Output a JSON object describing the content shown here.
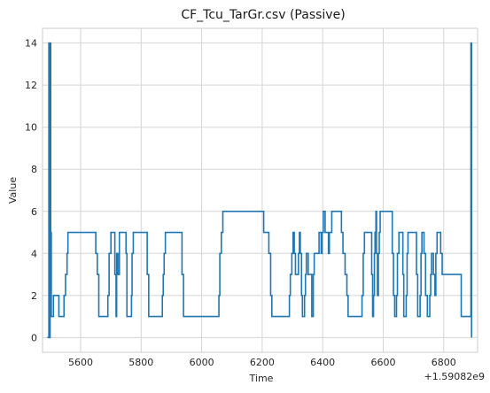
{
  "chart_data": {
    "type": "line",
    "title": "CF_Tcu_TarGr.csv (Passive)",
    "xlabel": "Time",
    "ylabel": "Value",
    "x_offset_label": "+1.59082e9",
    "xlim": [
      5474,
      6912
    ],
    "ylim": [
      -0.7,
      14.7
    ],
    "xticks": [
      5600,
      5800,
      6000,
      6200,
      6400,
      6600,
      6800
    ],
    "yticks": [
      0,
      2,
      4,
      6,
      8,
      10,
      12,
      14
    ],
    "grid": true,
    "line_color": "#1f77b4",
    "series": [
      {
        "values": [
          [
            5490,
            0
          ],
          [
            5495,
            0
          ],
          [
            5495,
            14
          ],
          [
            5497,
            14
          ],
          [
            5497,
            0
          ],
          [
            5499,
            0
          ],
          [
            5499,
            14
          ],
          [
            5501,
            14
          ],
          [
            5501,
            5
          ],
          [
            5503,
            5
          ],
          [
            5503,
            1
          ],
          [
            5510,
            1
          ],
          [
            5510,
            2
          ],
          [
            5528,
            2
          ],
          [
            5528,
            1
          ],
          [
            5545,
            1
          ],
          [
            5545,
            2
          ],
          [
            5550,
            2
          ],
          [
            5550,
            3
          ],
          [
            5555,
            3
          ],
          [
            5555,
            4
          ],
          [
            5558,
            4
          ],
          [
            5558,
            5
          ],
          [
            5650,
            5
          ],
          [
            5650,
            4
          ],
          [
            5655,
            4
          ],
          [
            5655,
            3
          ],
          [
            5660,
            3
          ],
          [
            5660,
            1
          ],
          [
            5690,
            1
          ],
          [
            5690,
            2
          ],
          [
            5694,
            2
          ],
          [
            5694,
            4
          ],
          [
            5700,
            4
          ],
          [
            5700,
            5
          ],
          [
            5713,
            5
          ],
          [
            5713,
            3
          ],
          [
            5717,
            3
          ],
          [
            5717,
            1
          ],
          [
            5719,
            1
          ],
          [
            5719,
            4
          ],
          [
            5723,
            4
          ],
          [
            5723,
            3
          ],
          [
            5728,
            3
          ],
          [
            5728,
            5
          ],
          [
            5750,
            5
          ],
          [
            5750,
            4
          ],
          [
            5753,
            4
          ],
          [
            5753,
            1
          ],
          [
            5768,
            1
          ],
          [
            5768,
            2
          ],
          [
            5770,
            2
          ],
          [
            5770,
            4
          ],
          [
            5774,
            4
          ],
          [
            5774,
            5
          ],
          [
            5820,
            5
          ],
          [
            5820,
            3
          ],
          [
            5825,
            3
          ],
          [
            5825,
            1
          ],
          [
            5870,
            1
          ],
          [
            5870,
            2
          ],
          [
            5873,
            2
          ],
          [
            5873,
            3
          ],
          [
            5876,
            3
          ],
          [
            5876,
            4
          ],
          [
            5880,
            4
          ],
          [
            5880,
            5
          ],
          [
            5935,
            5
          ],
          [
            5935,
            3
          ],
          [
            5940,
            3
          ],
          [
            5940,
            1
          ],
          [
            6057,
            1
          ],
          [
            6057,
            2
          ],
          [
            6060,
            2
          ],
          [
            6060,
            4
          ],
          [
            6065,
            4
          ],
          [
            6065,
            5
          ],
          [
            6070,
            5
          ],
          [
            6070,
            6
          ],
          [
            6205,
            6
          ],
          [
            6205,
            5
          ],
          [
            6222,
            5
          ],
          [
            6222,
            4
          ],
          [
            6228,
            4
          ],
          [
            6228,
            2
          ],
          [
            6232,
            2
          ],
          [
            6232,
            1
          ],
          [
            6290,
            1
          ],
          [
            6290,
            2
          ],
          [
            6293,
            2
          ],
          [
            6293,
            3
          ],
          [
            6298,
            3
          ],
          [
            6298,
            4
          ],
          [
            6302,
            4
          ],
          [
            6302,
            5
          ],
          [
            6306,
            5
          ],
          [
            6306,
            4
          ],
          [
            6310,
            4
          ],
          [
            6310,
            3
          ],
          [
            6320,
            3
          ],
          [
            6320,
            4
          ],
          [
            6323,
            4
          ],
          [
            6323,
            5
          ],
          [
            6326,
            5
          ],
          [
            6326,
            4
          ],
          [
            6330,
            4
          ],
          [
            6330,
            2
          ],
          [
            6333,
            2
          ],
          [
            6333,
            1
          ],
          [
            6340,
            1
          ],
          [
            6340,
            2
          ],
          [
            6343,
            2
          ],
          [
            6343,
            3
          ],
          [
            6346,
            3
          ],
          [
            6346,
            4
          ],
          [
            6352,
            4
          ],
          [
            6352,
            3
          ],
          [
            6364,
            3
          ],
          [
            6364,
            1
          ],
          [
            6369,
            1
          ],
          [
            6369,
            3
          ],
          [
            6372,
            3
          ],
          [
            6372,
            4
          ],
          [
            6388,
            4
          ],
          [
            6388,
            5
          ],
          [
            6395,
            5
          ],
          [
            6395,
            4
          ],
          [
            6398,
            4
          ],
          [
            6398,
            5
          ],
          [
            6402,
            5
          ],
          [
            6402,
            6
          ],
          [
            6408,
            6
          ],
          [
            6408,
            5
          ],
          [
            6419,
            5
          ],
          [
            6419,
            4
          ],
          [
            6422,
            4
          ],
          [
            6422,
            5
          ],
          [
            6430,
            5
          ],
          [
            6430,
            6
          ],
          [
            6462,
            6
          ],
          [
            6462,
            5
          ],
          [
            6467,
            5
          ],
          [
            6467,
            4
          ],
          [
            6474,
            4
          ],
          [
            6474,
            3
          ],
          [
            6480,
            3
          ],
          [
            6480,
            2
          ],
          [
            6484,
            2
          ],
          [
            6484,
            1
          ],
          [
            6530,
            1
          ],
          [
            6530,
            2
          ],
          [
            6534,
            2
          ],
          [
            6534,
            4
          ],
          [
            6538,
            4
          ],
          [
            6538,
            5
          ],
          [
            6562,
            5
          ],
          [
            6562,
            3
          ],
          [
            6565,
            3
          ],
          [
            6565,
            1
          ],
          [
            6568,
            1
          ],
          [
            6568,
            2
          ],
          [
            6571,
            2
          ],
          [
            6571,
            4
          ],
          [
            6573,
            4
          ],
          [
            6573,
            5
          ],
          [
            6576,
            5
          ],
          [
            6576,
            6
          ],
          [
            6578,
            6
          ],
          [
            6578,
            4
          ],
          [
            6581,
            4
          ],
          [
            6581,
            2
          ],
          [
            6584,
            2
          ],
          [
            6584,
            4
          ],
          [
            6587,
            4
          ],
          [
            6587,
            5
          ],
          [
            6590,
            5
          ],
          [
            6590,
            6
          ],
          [
            6630,
            6
          ],
          [
            6630,
            4
          ],
          [
            6634,
            4
          ],
          [
            6634,
            2
          ],
          [
            6638,
            2
          ],
          [
            6638,
            1
          ],
          [
            6644,
            1
          ],
          [
            6644,
            2
          ],
          [
            6647,
            2
          ],
          [
            6647,
            4
          ],
          [
            6652,
            4
          ],
          [
            6652,
            5
          ],
          [
            6665,
            5
          ],
          [
            6665,
            3
          ],
          [
            6668,
            3
          ],
          [
            6668,
            1
          ],
          [
            6676,
            1
          ],
          [
            6676,
            2
          ],
          [
            6679,
            2
          ],
          [
            6679,
            4
          ],
          [
            6682,
            4
          ],
          [
            6682,
            5
          ],
          [
            6710,
            5
          ],
          [
            6710,
            3
          ],
          [
            6714,
            3
          ],
          [
            6714,
            1
          ],
          [
            6722,
            1
          ],
          [
            6722,
            2
          ],
          [
            6725,
            2
          ],
          [
            6725,
            4
          ],
          [
            6728,
            4
          ],
          [
            6728,
            5
          ],
          [
            6735,
            5
          ],
          [
            6735,
            4
          ],
          [
            6740,
            4
          ],
          [
            6740,
            2
          ],
          [
            6746,
            2
          ],
          [
            6746,
            1
          ],
          [
            6754,
            1
          ],
          [
            6754,
            2
          ],
          [
            6757,
            2
          ],
          [
            6757,
            3
          ],
          [
            6760,
            3
          ],
          [
            6760,
            4
          ],
          [
            6766,
            4
          ],
          [
            6766,
            3
          ],
          [
            6771,
            3
          ],
          [
            6771,
            2
          ],
          [
            6774,
            2
          ],
          [
            6774,
            4
          ],
          [
            6778,
            4
          ],
          [
            6778,
            5
          ],
          [
            6790,
            5
          ],
          [
            6790,
            4
          ],
          [
            6795,
            4
          ],
          [
            6795,
            3
          ],
          [
            6858,
            3
          ],
          [
            6858,
            1
          ],
          [
            6890,
            1
          ],
          [
            6890,
            14
          ],
          [
            6892,
            14
          ],
          [
            6892,
            0
          ]
        ]
      }
    ]
  }
}
